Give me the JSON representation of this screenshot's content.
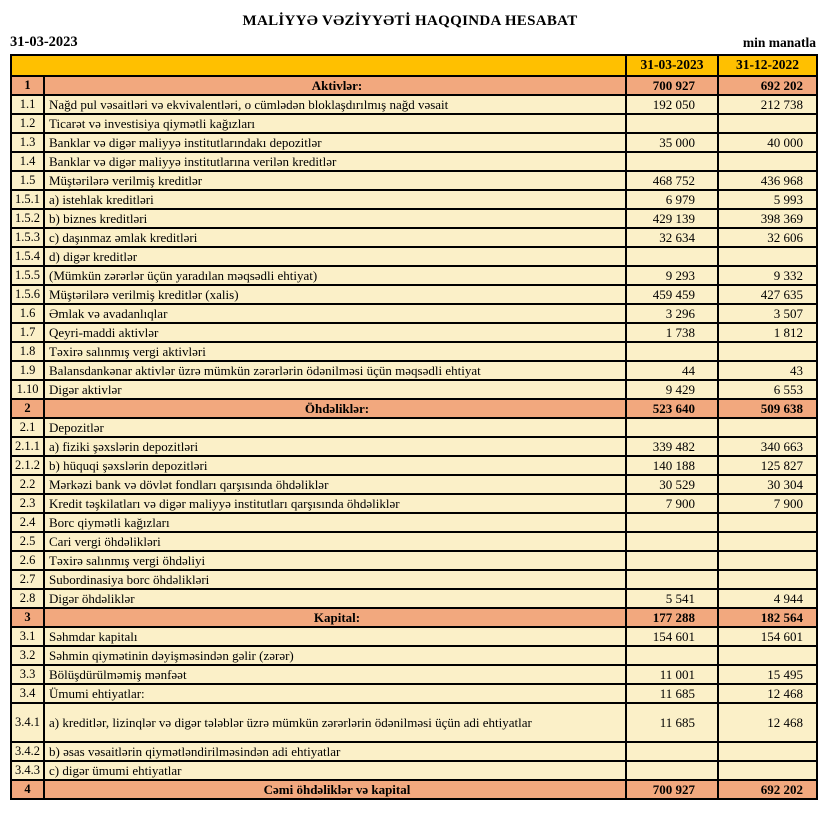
{
  "header": {
    "title": "MALİYYƏ VƏZİYYƏTİ HAQQINDA HESABAT",
    "report_date": "31-03-2023",
    "unit_note": "min manatla",
    "columns": [
      "31-03-2023",
      "31-12-2022"
    ]
  },
  "colors": {
    "header_gold": "#FFC000",
    "section_salmon": "#F2A87E",
    "row_cream": "#FBF0C8",
    "border": "#000000"
  },
  "table": {
    "rows": [
      {
        "no": "1",
        "label": "Aktivlər:",
        "kind": "section",
        "v1": "700 927",
        "v2": "692 202"
      },
      {
        "no": "1.1",
        "label": "Nağd pul vəsaitləri və  ekvivalentləri, o cümlədən bloklaşdırılmış nağd vəsait",
        "kind": "item",
        "v1": "192 050",
        "v2": "212 738"
      },
      {
        "no": "1.2",
        "label": "Ticarət və investisiya qiymətli kağızları",
        "kind": "item",
        "v1": "",
        "v2": ""
      },
      {
        "no": "1.3",
        "label": "Banklar və digər maliyyə institutlarındakı depozitlər",
        "kind": "item",
        "v1": "35 000",
        "v2": "40 000"
      },
      {
        "no": "1.4",
        "label": "Banklar və digər maliyyə institutlarına verilən kreditlər",
        "kind": "item",
        "v1": "",
        "v2": ""
      },
      {
        "no": "1.5",
        "label": "Müştərilərə verilmiş kreditlər",
        "kind": "item",
        "v1": "468 752",
        "v2": "436 968"
      },
      {
        "no": "1.5.1",
        "label": "a) istehlak kreditləri",
        "kind": "item",
        "v1": "6 979",
        "v2": "5 993"
      },
      {
        "no": "1.5.2",
        "label": "b) biznes kreditləri",
        "kind": "item",
        "v1": "429 139",
        "v2": "398 369"
      },
      {
        "no": "1.5.3",
        "label": "c) daşınmaz əmlak kreditləri",
        "kind": "item",
        "v1": "32 634",
        "v2": "32 606"
      },
      {
        "no": "1.5.4",
        "label": "d) digər kreditlər",
        "kind": "item",
        "v1": "",
        "v2": ""
      },
      {
        "no": "1.5.5",
        "label": "(Mümkün zərərlər üçün yaradılan məqsədli ehtiyat)",
        "kind": "item",
        "v1": "9 293",
        "v2": "9 332"
      },
      {
        "no": "1.5.6",
        "label": "Müştərilərə verilmiş kreditlər (xalis)",
        "kind": "item",
        "v1": "459 459",
        "v2": "427 635"
      },
      {
        "no": "1.6",
        "label": "Əmlak və avadanlıqlar",
        "kind": "item",
        "v1": "3 296",
        "v2": "3 507"
      },
      {
        "no": "1.7",
        "label": "Qeyri-maddi aktivlər",
        "kind": "item",
        "v1": "1 738",
        "v2": "1 812"
      },
      {
        "no": "1.8",
        "label": "Təxirə salınmış vergi aktivləri",
        "kind": "item",
        "v1": "",
        "v2": ""
      },
      {
        "no": "1.9",
        "label": "Balansdankənar aktivlər üzrə mümkün zərərlərin ödənilməsi üçün məqsədli ehtiyat",
        "kind": "item",
        "v1": "44",
        "v2": "43"
      },
      {
        "no": "1.10",
        "label": "Digər aktivlər",
        "kind": "item",
        "v1": "9 429",
        "v2": "6 553"
      },
      {
        "no": "2",
        "label": "Öhdəliklər:",
        "kind": "section",
        "v1": "523 640",
        "v2": "509 638"
      },
      {
        "no": "2.1",
        "label": "Depozitlər",
        "kind": "item",
        "v1": "",
        "v2": ""
      },
      {
        "no": "2.1.1",
        "label": "a) fiziki şəxslərin depozitləri",
        "kind": "item",
        "v1": "339 482",
        "v2": "340 663"
      },
      {
        "no": "2.1.2",
        "label": "b) hüquqi şəxslərin depozitləri",
        "kind": "item",
        "v1": "140 188",
        "v2": "125 827"
      },
      {
        "no": "2.2",
        "label": "Mərkəzi bank və dövlət fondları qarşısında öhdəliklər",
        "kind": "item",
        "v1": "30 529",
        "v2": "30 304"
      },
      {
        "no": "2.3",
        "label": "Kredit təşkilatları və digər maliyyə institutları qarşısında öhdəliklər",
        "kind": "item",
        "v1": "7 900",
        "v2": "7 900"
      },
      {
        "no": "2.4",
        "label": "Borc qiymətli kağızları",
        "kind": "item",
        "v1": "",
        "v2": ""
      },
      {
        "no": "2.5",
        "label": "Cari vergi öhdəlikləri",
        "kind": "item",
        "v1": "",
        "v2": ""
      },
      {
        "no": "2.6",
        "label": "Təxirə salınmış vergi öhdəliyi",
        "kind": "item",
        "v1": "",
        "v2": ""
      },
      {
        "no": "2.7",
        "label": "Subordinasiya borc öhdəlikləri",
        "kind": "item",
        "v1": "",
        "v2": ""
      },
      {
        "no": "2.8",
        "label": "Digər öhdəliklər",
        "kind": "item",
        "v1": "5 541",
        "v2": "4 944"
      },
      {
        "no": "3",
        "label": "Kapital:",
        "kind": "section",
        "v1": "177 288",
        "v2": "182 564"
      },
      {
        "no": "3.1",
        "label": "Səhmdar kapitalı",
        "kind": "item",
        "v1": "154 601",
        "v2": "154 601"
      },
      {
        "no": "3.2",
        "label": "Səhmin qiymətinin dəyişməsindən gəlir (zərər)",
        "kind": "item",
        "v1": "",
        "v2": ""
      },
      {
        "no": "3.3",
        "label": "Bölüşdürülməmiş mənfəət",
        "kind": "item",
        "v1": "11 001",
        "v2": "15 495"
      },
      {
        "no": "3.4",
        "label": "Ümumi ehtiyatlar:",
        "kind": "item",
        "v1": "11 685",
        "v2": "12 468"
      },
      {
        "no": "3.4.1",
        "label": "a) kreditlər, lizinqlər və digər tələblər üzrə mümkün zərərlərin ödənilməsi üçün adi ehtiyatlar",
        "kind": "item",
        "tall": true,
        "v1": "11 685",
        "v2": "12 468"
      },
      {
        "no": "3.4.2",
        "label": "b) əsas vəsaitlərin qiymətləndirilməsindən adi ehtiyatlar",
        "kind": "item",
        "v1": "",
        "v2": ""
      },
      {
        "no": "3.4.3",
        "label": "c) digər ümumi ehtiyatlar",
        "kind": "item",
        "v1": "",
        "v2": ""
      },
      {
        "no": "4",
        "label": "Cəmi öhdəliklər və kapital",
        "kind": "section",
        "v1": "700 927",
        "v2": "692 202"
      }
    ]
  }
}
